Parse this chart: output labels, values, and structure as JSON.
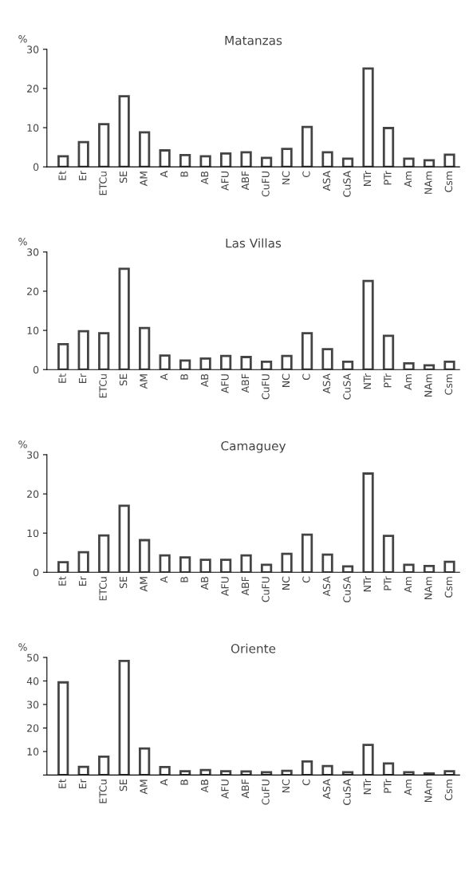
{
  "chart_data": [
    {
      "type": "bar",
      "title": "Matanzas",
      "ylabel": "%",
      "categories": [
        "Et",
        "Er",
        "ETCu",
        "SE",
        "AM",
        "A",
        "B",
        "AB",
        "AFU",
        "ABF",
        "CuFU",
        "NC",
        "C",
        "ASA",
        "CuSA",
        "NTr",
        "PTr",
        "Am",
        "NAm",
        "Csm"
      ],
      "color": "#444444",
      "values": [
        2.7,
        6.3,
        10.9,
        18,
        8.8,
        4.2,
        3.0,
        2.7,
        3.4,
        3.7,
        2.3,
        4.6,
        10.2,
        3.7,
        2.1,
        25.1,
        9.9,
        2.1,
        1.7,
        3.1
      ],
      "ylim": [
        0,
        30
      ],
      "yticks": [
        0,
        10,
        20,
        30
      ],
      "grid": false
    },
    {
      "type": "bar",
      "title": "Las Villas",
      "ylabel": "%",
      "categories": [
        "Et",
        "Er",
        "ETCu",
        "SE",
        "AM",
        "A",
        "B",
        "AB",
        "AFU",
        "ABF",
        "CuFU",
        "NC",
        "C",
        "ASA",
        "CuSA",
        "NTr",
        "PTr",
        "Am",
        "NAm",
        "Csm"
      ],
      "color": "#444444",
      "values": [
        6.5,
        9.8,
        9.3,
        25.7,
        10.6,
        3.6,
        2.3,
        2.8,
        3.5,
        3.2,
        2.0,
        3.5,
        9.3,
        5.2,
        2.0,
        22.6,
        8.6,
        1.6,
        1.1,
        2.0
      ],
      "ylim": [
        0,
        30
      ],
      "yticks": [
        0,
        10,
        20,
        30
      ],
      "grid": false
    },
    {
      "type": "bar",
      "title": "Camaguey",
      "ylabel": "%",
      "categories": [
        "Et",
        "Er",
        "ETCu",
        "SE",
        "AM",
        "A",
        "B",
        "AB",
        "AFU",
        "ABF",
        "CuFU",
        "NC",
        "C",
        "ASA",
        "CuSA",
        "NTr",
        "PTr",
        "Am",
        "NAm",
        "Csm"
      ],
      "color": "#444444",
      "values": [
        2.6,
        5.1,
        9.4,
        17,
        8.2,
        4.3,
        3.8,
        3.2,
        3.2,
        4.3,
        1.9,
        4.7,
        9.6,
        4.5,
        1.5,
        25.2,
        9.3,
        1.9,
        1.6,
        2.7
      ],
      "ylim": [
        0,
        30
      ],
      "yticks": [
        0,
        10,
        20,
        30
      ],
      "grid": false
    },
    {
      "type": "bar",
      "title": "Oriente",
      "ylabel": "%",
      "categories": [
        "Et",
        "Er",
        "ETCu",
        "SE",
        "AM",
        "A",
        "B",
        "AB",
        "AFU",
        "ABF",
        "CuFU",
        "NC",
        "C",
        "ASA",
        "CuSA",
        "NTr",
        "PTr",
        "Am",
        "NAm",
        "Csm"
      ],
      "color": "#444444",
      "values": [
        39.4,
        3.5,
        7.8,
        48.5,
        11.3,
        3.4,
        1.6,
        2.1,
        1.6,
        1.5,
        1.2,
        1.8,
        5.8,
        3.8,
        1.2,
        12.8,
        4.9,
        1.2,
        0.7,
        1.6
      ],
      "ylim": [
        0,
        50
      ],
      "yticks": [
        {
          "value": 0,
          "label": null
        },
        10,
        20,
        30,
        40,
        50
      ],
      "grid": false
    }
  ]
}
